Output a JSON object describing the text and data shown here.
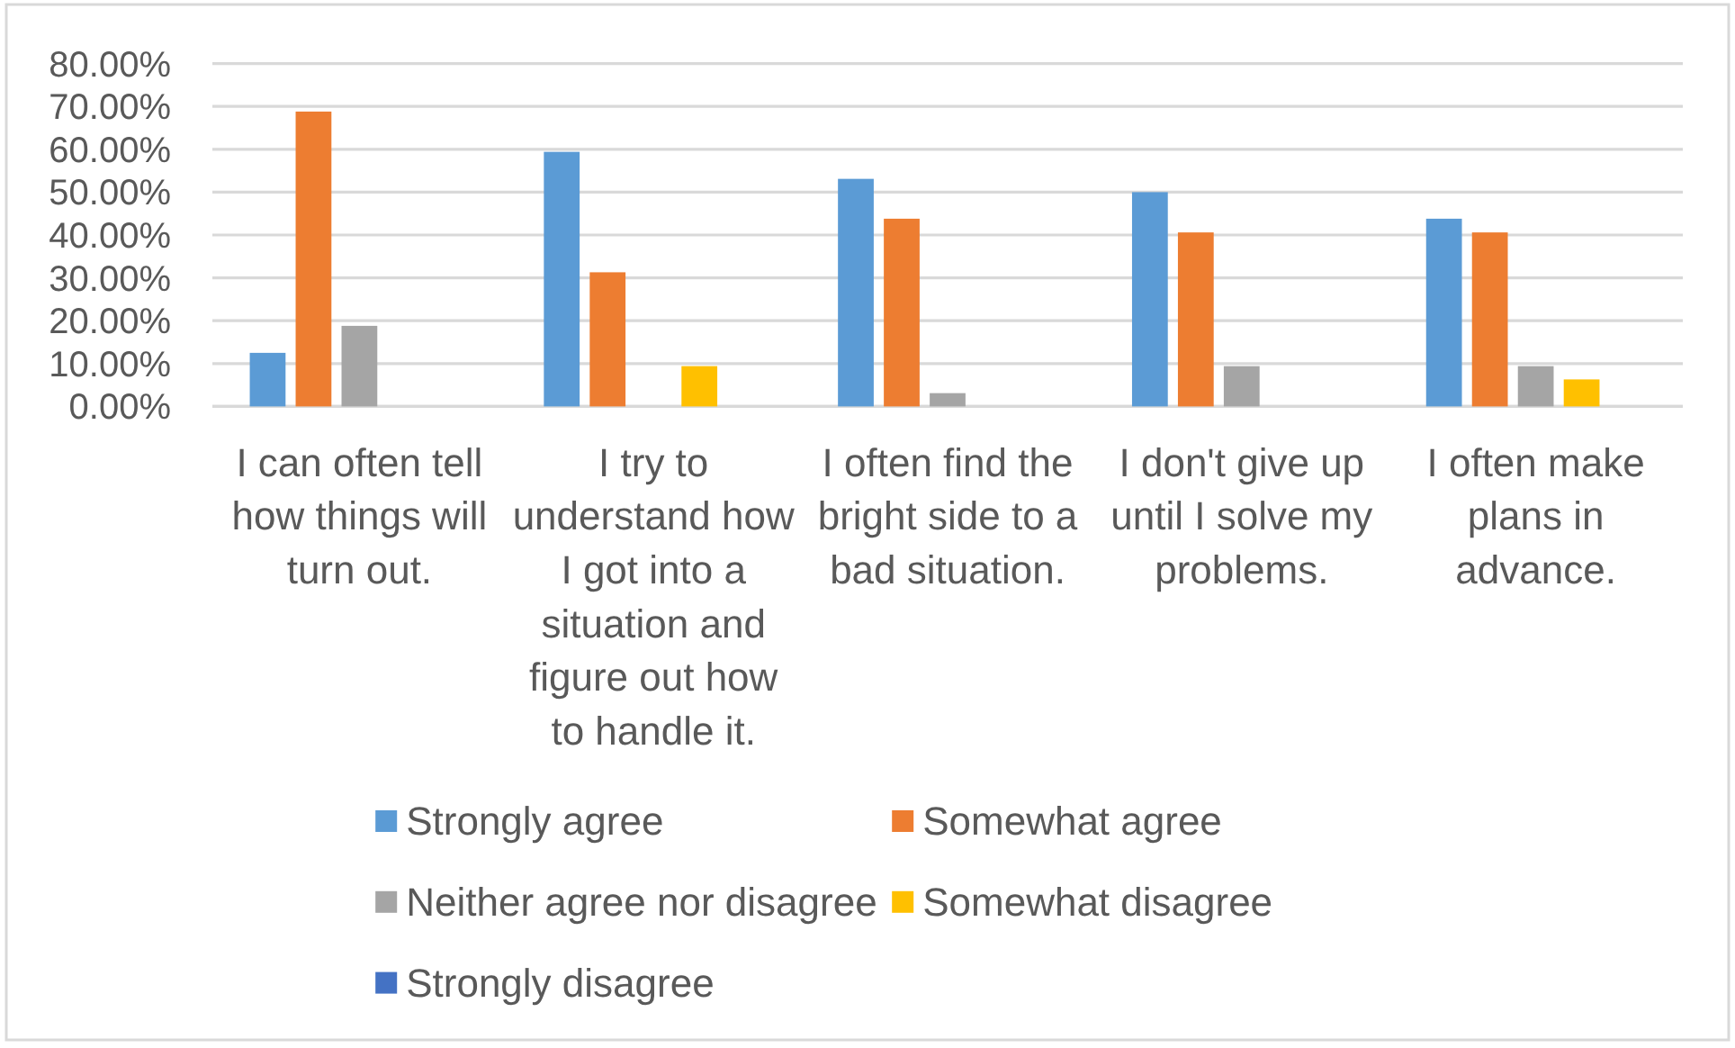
{
  "chart_data": {
    "type": "bar",
    "categories": [
      "I can often tell how things will turn out.",
      "I try to understand how I got into a situation and figure out how to handle it.",
      "I often find the bright side to a bad situation.",
      "I don't give up until I solve my problems.",
      "I often make plans in advance."
    ],
    "series": [
      {
        "name": "Strongly agree",
        "color": "#5b9bd5",
        "values": [
          12.5,
          59.4,
          53.1,
          50,
          43.8
        ]
      },
      {
        "name": "Somewhat agree",
        "color": "#ed7d31",
        "values": [
          68.8,
          31.3,
          43.8,
          40.6,
          40.6
        ]
      },
      {
        "name": "Neither agree nor disagree",
        "color": "#a5a5a5",
        "values": [
          18.8,
          0,
          3.1,
          9.4,
          9.4
        ]
      },
      {
        "name": "Somewhat disagree",
        "color": "#ffc000",
        "values": [
          0,
          9.4,
          0,
          0,
          6.3
        ]
      },
      {
        "name": "Strongly disagree",
        "color": "#4472c4",
        "values": [
          0,
          0,
          0,
          0,
          0
        ]
      }
    ],
    "ylim": [
      0,
      80
    ],
    "yticks": [
      {
        "value": 0,
        "label": "0.00%"
      },
      {
        "value": 10,
        "label": "10.00%"
      },
      {
        "value": 20,
        "label": "20.00%"
      },
      {
        "value": 30,
        "label": "30.00%"
      },
      {
        "value": 40,
        "label": "40.00%"
      },
      {
        "value": 50,
        "label": "50.00%"
      },
      {
        "value": 60,
        "label": "60.00%"
      },
      {
        "value": 70,
        "label": "70.00%"
      },
      {
        "value": 80,
        "label": "80.00%"
      }
    ],
    "grid": "y",
    "legend": "bottom"
  }
}
